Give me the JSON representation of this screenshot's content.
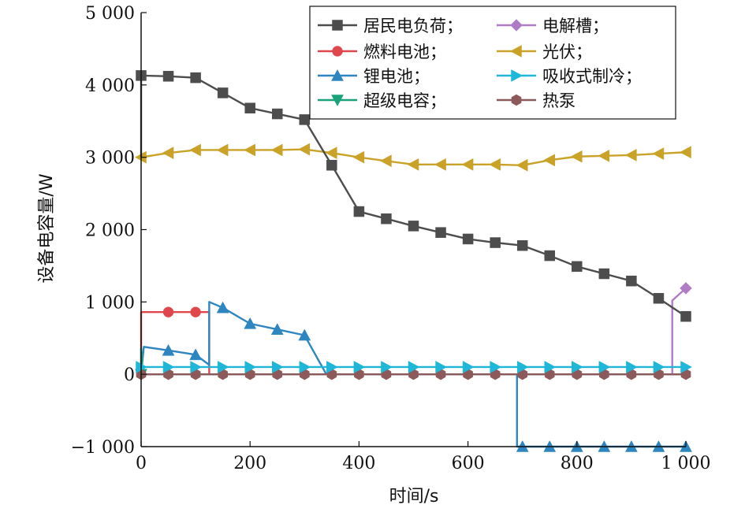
{
  "chart_data": {
    "type": "line",
    "xlabel": "时间/s",
    "ylabel": "设备电容量/W",
    "xlim": [
      0,
      1000
    ],
    "ylim": [
      -1000,
      5000
    ],
    "x_ticks": [
      0,
      200,
      400,
      600,
      800,
      1000
    ],
    "x_tick_labels": [
      "0",
      "200",
      "400",
      "600",
      "800",
      "1 000"
    ],
    "y_ticks": [
      -1000,
      0,
      1000,
      2000,
      3000,
      4000,
      5000
    ],
    "y_tick_labels": [
      "−1 000",
      "0",
      "1 000",
      "2 000",
      "3 000",
      "4 000",
      "5 000"
    ],
    "grid": false,
    "legend_position": "top-right",
    "series": [
      {
        "name": "居民电负荷；",
        "color": "#4d4d4d",
        "marker": "square",
        "points": [
          [
            0,
            3000
          ],
          [
            0,
            4130
          ],
          [
            50,
            4120
          ],
          [
            100,
            4100
          ],
          [
            150,
            3890
          ],
          [
            200,
            3680
          ],
          [
            250,
            3600
          ],
          [
            300,
            3520
          ],
          [
            350,
            2890
          ],
          [
            400,
            2250
          ],
          [
            450,
            2150
          ],
          [
            500,
            2050
          ],
          [
            550,
            1960
          ],
          [
            600,
            1870
          ],
          [
            650,
            1820
          ],
          [
            700,
            1780
          ],
          [
            750,
            1640
          ],
          [
            800,
            1490
          ],
          [
            850,
            1390
          ],
          [
            900,
            1290
          ],
          [
            950,
            1050
          ],
          [
            1000,
            800
          ]
        ],
        "markers": [
          [
            0,
            4130
          ],
          [
            50,
            4120
          ],
          [
            100,
            4100
          ],
          [
            150,
            3890
          ],
          [
            200,
            3680
          ],
          [
            250,
            3600
          ],
          [
            300,
            3520
          ],
          [
            350,
            2890
          ],
          [
            400,
            2250
          ],
          [
            450,
            2150
          ],
          [
            500,
            2050
          ],
          [
            550,
            1960
          ],
          [
            600,
            1870
          ],
          [
            650,
            1820
          ],
          [
            700,
            1780
          ],
          [
            750,
            1640
          ],
          [
            800,
            1490
          ],
          [
            850,
            1390
          ],
          [
            900,
            1290
          ],
          [
            950,
            1050
          ],
          [
            1000,
            800
          ]
        ]
      },
      {
        "name": "燃料电池；",
        "color": "#e0474c",
        "marker": "circle",
        "points": [
          [
            0,
            0
          ],
          [
            0,
            860
          ],
          [
            125,
            860
          ],
          [
            125,
            0
          ],
          [
            1000,
            0
          ]
        ],
        "markers": [
          [
            50,
            860
          ],
          [
            100,
            860
          ]
        ]
      },
      {
        "name": "锂电池；",
        "color": "#2e86c1",
        "marker": "triangle-up",
        "points": [
          [
            0,
            0
          ],
          [
            5,
            380
          ],
          [
            50,
            330
          ],
          [
            100,
            270
          ],
          [
            125,
            130
          ],
          [
            125,
            1000
          ],
          [
            150,
            920
          ],
          [
            200,
            700
          ],
          [
            250,
            620
          ],
          [
            300,
            540
          ],
          [
            340,
            0
          ],
          [
            690,
            0
          ],
          [
            690,
            -1000
          ],
          [
            1000,
            -1000
          ]
        ],
        "markers": [
          [
            50,
            330
          ],
          [
            100,
            270
          ],
          [
            150,
            920
          ],
          [
            200,
            700
          ],
          [
            250,
            620
          ],
          [
            300,
            540
          ],
          [
            700,
            -1000
          ],
          [
            750,
            -1000
          ],
          [
            800,
            -1000
          ],
          [
            850,
            -1000
          ],
          [
            900,
            -1000
          ],
          [
            950,
            -1000
          ],
          [
            1000,
            -1000
          ]
        ]
      },
      {
        "name": "超级电容；",
        "color": "#1aa37a",
        "marker": "triangle-down",
        "points": [
          [
            0,
            0
          ],
          [
            0,
            360
          ],
          [
            3,
            0
          ],
          [
            1000,
            0
          ]
        ],
        "markers": [
          [
            0,
            0
          ]
        ]
      },
      {
        "name": "电解槽；",
        "color": "#b07cc6",
        "marker": "diamond",
        "points": [
          [
            0,
            0
          ],
          [
            975,
            0
          ],
          [
            975,
            1020
          ],
          [
            1000,
            1190
          ]
        ],
        "markers": [
          [
            1000,
            1190
          ]
        ]
      },
      {
        "name": "光伏；",
        "color": "#c9a227",
        "marker": "triangle-left",
        "points": [
          [
            0,
            3000
          ],
          [
            50,
            3060
          ],
          [
            100,
            3100
          ],
          [
            150,
            3100
          ],
          [
            200,
            3100
          ],
          [
            250,
            3100
          ],
          [
            300,
            3110
          ],
          [
            350,
            3060
          ],
          [
            400,
            3000
          ],
          [
            450,
            2950
          ],
          [
            500,
            2900
          ],
          [
            550,
            2900
          ],
          [
            600,
            2900
          ],
          [
            650,
            2900
          ],
          [
            700,
            2890
          ],
          [
            750,
            2960
          ],
          [
            800,
            3010
          ],
          [
            850,
            3020
          ],
          [
            900,
            3030
          ],
          [
            950,
            3050
          ],
          [
            1000,
            3070
          ]
        ],
        "markers": [
          [
            0,
            3000
          ],
          [
            50,
            3060
          ],
          [
            100,
            3100
          ],
          [
            150,
            3100
          ],
          [
            200,
            3100
          ],
          [
            250,
            3100
          ],
          [
            300,
            3110
          ],
          [
            350,
            3060
          ],
          [
            400,
            3000
          ],
          [
            450,
            2950
          ],
          [
            500,
            2900
          ],
          [
            550,
            2900
          ],
          [
            600,
            2900
          ],
          [
            650,
            2900
          ],
          [
            700,
            2890
          ],
          [
            750,
            2960
          ],
          [
            800,
            3010
          ],
          [
            850,
            3020
          ],
          [
            900,
            3030
          ],
          [
            950,
            3050
          ],
          [
            1000,
            3070
          ]
        ]
      },
      {
        "name": "吸收式制冷；",
        "color": "#1fb6d8",
        "marker": "triangle-right",
        "points": [
          [
            0,
            100
          ],
          [
            1000,
            100
          ]
        ],
        "markers": [
          [
            0,
            100
          ],
          [
            50,
            100
          ],
          [
            100,
            100
          ],
          [
            150,
            100
          ],
          [
            200,
            100
          ],
          [
            250,
            100
          ],
          [
            300,
            100
          ],
          [
            350,
            100
          ],
          [
            400,
            100
          ],
          [
            450,
            100
          ],
          [
            500,
            100
          ],
          [
            550,
            100
          ],
          [
            600,
            100
          ],
          [
            650,
            100
          ],
          [
            700,
            100
          ],
          [
            750,
            100
          ],
          [
            800,
            100
          ],
          [
            850,
            100
          ],
          [
            900,
            100
          ],
          [
            950,
            100
          ],
          [
            1000,
            100
          ]
        ]
      },
      {
        "name": "热泵",
        "color": "#8c5a5a",
        "marker": "hexagon",
        "points": [
          [
            0,
            0
          ],
          [
            1000,
            0
          ]
        ],
        "markers": [
          [
            0,
            0
          ],
          [
            50,
            0
          ],
          [
            100,
            0
          ],
          [
            150,
            0
          ],
          [
            200,
            0
          ],
          [
            250,
            0
          ],
          [
            300,
            0
          ],
          [
            350,
            0
          ],
          [
            400,
            0
          ],
          [
            450,
            0
          ],
          [
            500,
            0
          ],
          [
            550,
            0
          ],
          [
            600,
            0
          ],
          [
            650,
            0
          ],
          [
            700,
            0
          ],
          [
            750,
            0
          ],
          [
            800,
            0
          ],
          [
            850,
            0
          ],
          [
            900,
            0
          ],
          [
            950,
            0
          ],
          [
            1000,
            0
          ]
        ]
      }
    ]
  }
}
